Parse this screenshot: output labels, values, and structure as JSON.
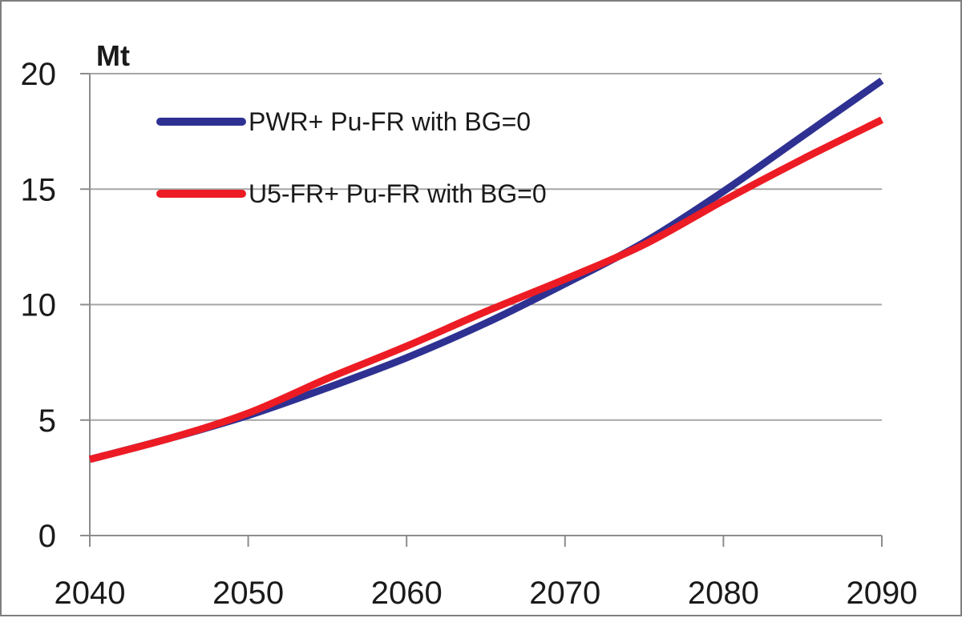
{
  "chart_data": {
    "type": "line",
    "y_unit_label": "Mt",
    "xlim": [
      2040,
      2090
    ],
    "ylim": [
      0,
      20
    ],
    "x_ticks": [
      "2040",
      "2050",
      "2060",
      "2070",
      "2080",
      "2090"
    ],
    "y_ticks": [
      "0",
      "5",
      "10",
      "15",
      "20"
    ],
    "grid": "horizontal",
    "legend_position": "top-left",
    "x": [
      2040,
      2045,
      2050,
      2055,
      2060,
      2065,
      2070,
      2075,
      2080,
      2085,
      2090
    ],
    "series": [
      {
        "name": "PWR+ Pu-FR with BG=0",
        "color": "#2e3192",
        "values": [
          3.3,
          4.2,
          5.2,
          6.4,
          7.7,
          9.2,
          10.9,
          12.7,
          14.9,
          17.3,
          19.7
        ]
      },
      {
        "name": "U5-FR+ Pu-FR with BG=0",
        "color": "#ed1c24",
        "values": [
          3.3,
          4.2,
          5.3,
          6.8,
          8.2,
          9.7,
          11.1,
          12.6,
          14.5,
          16.3,
          18.0
        ]
      }
    ]
  }
}
